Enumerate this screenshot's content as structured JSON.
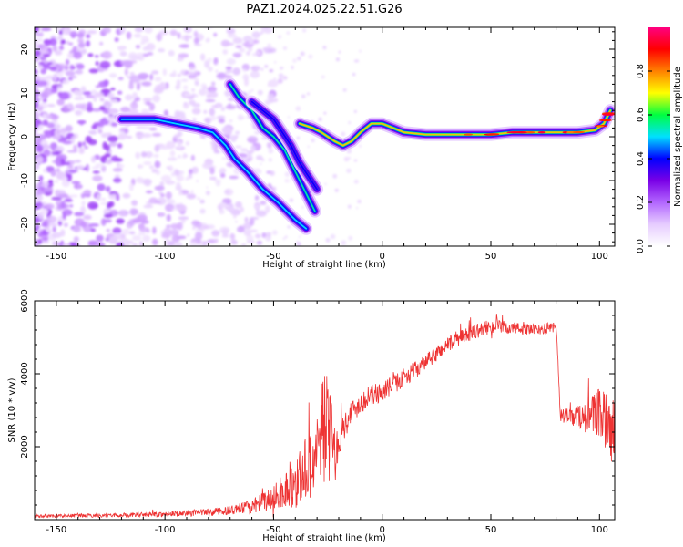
{
  "figure": {
    "title": "PAZ1.2024.025.22.51.G26"
  },
  "chart_data": [
    {
      "type": "heatmap",
      "name": "spectrogram",
      "xlabel": "Height of straight line (km)",
      "ylabel": "Frequency (Hz)",
      "xlim": [
        -160,
        107
      ],
      "ylim": [
        -25,
        25
      ],
      "xticks": [
        -150,
        -100,
        -50,
        0,
        50,
        100
      ],
      "yticks": [
        -20,
        -10,
        0,
        10,
        20
      ],
      "colorbar": {
        "label": "Normalized spectral amplitude",
        "range": [
          0,
          1
        ],
        "ticks": [
          0.0,
          0.2,
          0.4,
          0.6,
          0.8
        ],
        "colormap": [
          "#ffffff",
          "#e6ccff",
          "#b266ff",
          "#7a00e6",
          "#0000ff",
          "#00e0ff",
          "#00ff40",
          "#ffff00",
          "#ff8000",
          "#ff0000",
          "#ff0080"
        ]
      },
      "ridges": [
        {
          "points": [
            [
              -120,
              4
            ],
            [
              -105,
              4
            ],
            [
              -95,
              3
            ],
            [
              -85,
              2
            ],
            [
              -78,
              1
            ],
            [
              -72,
              -2
            ],
            [
              -68,
              -5
            ],
            [
              -62,
              -8
            ],
            [
              -55,
              -12
            ],
            [
              -48,
              -15
            ],
            [
              -40,
              -19
            ],
            [
              -35,
              -21
            ]
          ],
          "amplitude": 0.5
        },
        {
          "points": [
            [
              -70,
              12
            ],
            [
              -66,
              9
            ],
            [
              -60,
              6
            ],
            [
              -55,
              2
            ],
            [
              -50,
              0
            ],
            [
              -45,
              -3
            ],
            [
              -42,
              -6
            ],
            [
              -38,
              -10
            ],
            [
              -34,
              -14
            ],
            [
              -31,
              -17
            ]
          ],
          "amplitude": 0.55
        },
        {
          "points": [
            [
              -60,
              8
            ],
            [
              -55,
              6
            ],
            [
              -50,
              4
            ],
            [
              -46,
              1
            ],
            [
              -42,
              -2
            ],
            [
              -38,
              -6
            ],
            [
              -34,
              -9
            ],
            [
              -30,
              -12
            ]
          ],
          "amplitude": 0.4
        },
        {
          "points": [
            [
              -38,
              3
            ],
            [
              -32,
              2
            ],
            [
              -28,
              1
            ],
            [
              -22,
              -1
            ],
            [
              -18,
              -2
            ],
            [
              -14,
              -1
            ],
            [
              -10,
              1
            ],
            [
              -5,
              3
            ],
            [
              0,
              3
            ],
            [
              5,
              2
            ],
            [
              10,
              1
            ],
            [
              20,
              0.5
            ],
            [
              30,
              0.5
            ],
            [
              40,
              0.5
            ],
            [
              50,
              0.5
            ],
            [
              60,
              1
            ],
            [
              70,
              1
            ],
            [
              80,
              1
            ],
            [
              90,
              1
            ],
            [
              98,
              1.5
            ],
            [
              102,
              3
            ],
            [
              105,
              6
            ]
          ],
          "amplitude": 0.75
        }
      ]
    },
    {
      "type": "line",
      "name": "snr",
      "xlabel": "Height of straight line (km)",
      "ylabel": "SNR (10 * v/v)",
      "xlim": [
        -160,
        107
      ],
      "ylim": [
        0,
        6000
      ],
      "xticks": [
        -150,
        -100,
        -50,
        0,
        50,
        100
      ],
      "yticks": [
        2000,
        4000,
        6000
      ],
      "line_color": "#ee3333",
      "envelope": {
        "x": [
          -160,
          -140,
          -120,
          -100,
          -80,
          -70,
          -60,
          -50,
          -45,
          -40,
          -35,
          -30,
          -28,
          -25,
          -22,
          -20,
          -15,
          -10,
          -5,
          0,
          10,
          20,
          30,
          40,
          50,
          60,
          70,
          78,
          80,
          82,
          85,
          90,
          95,
          100,
          103,
          107
        ],
        "y": [
          100,
          110,
          120,
          150,
          200,
          250,
          350,
          600,
          800,
          1000,
          1400,
          1800,
          2600,
          2500,
          1800,
          2200,
          2900,
          3200,
          3400,
          3500,
          3900,
          4300,
          4800,
          5100,
          5300,
          5250,
          5200,
          5250,
          5300,
          2900,
          2800,
          2850,
          2800,
          2900,
          2600,
          2400
        ],
        "noise": [
          40,
          50,
          55,
          70,
          100,
          120,
          200,
          350,
          500,
          700,
          900,
          1300,
          1600,
          1500,
          1000,
          450,
          350,
          300,
          300,
          280,
          250,
          220,
          220,
          200,
          200,
          180,
          150,
          150,
          150,
          200,
          250,
          300,
          500,
          700,
          900,
          900
        ]
      }
    }
  ]
}
